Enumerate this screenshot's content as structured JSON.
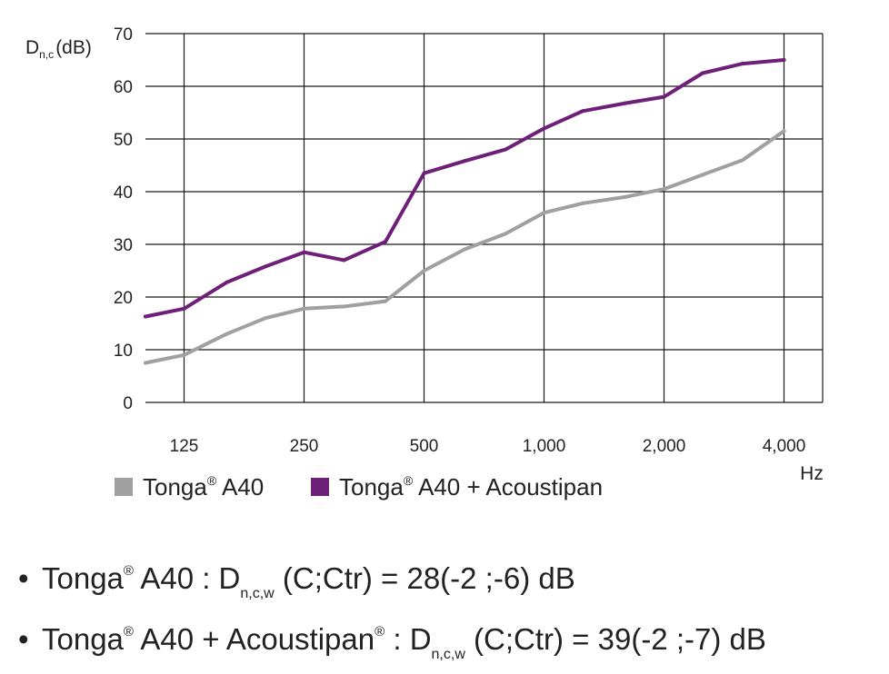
{
  "chart_data": {
    "type": "line",
    "ylabel": {
      "main": "D",
      "sub": "n,c",
      "unit": "(dB)"
    },
    "xlabel": "Hz",
    "ylim": [
      0,
      70
    ],
    "yticks": [
      0,
      10,
      20,
      30,
      40,
      50,
      60,
      70
    ],
    "x_scale": "log",
    "x_range": [
      100,
      5000
    ],
    "xticks": [
      {
        "value": 125,
        "label": "125"
      },
      {
        "value": 250,
        "label": "250"
      },
      {
        "value": 500,
        "label": "500"
      },
      {
        "value": 1000,
        "label": "1,000"
      },
      {
        "value": 2000,
        "label": "2,000"
      },
      {
        "value": 4000,
        "label": "4,000"
      }
    ],
    "grid": true,
    "x": [
      100,
      125,
      160,
      200,
      250,
      315,
      400,
      500,
      630,
      800,
      1000,
      1250,
      1600,
      2000,
      2500,
      3150,
      4000,
      5000
    ],
    "series": [
      {
        "name_main": "Tonga",
        "name_sup": "®",
        "name_rest": " A40",
        "color": "#a0a0a0",
        "values": [
          7.5,
          9,
          13,
          16,
          17.8,
          18.2,
          19.2,
          25,
          29,
          32,
          36,
          37.8,
          39,
          40.5,
          43.2,
          46,
          51.5,
          null
        ]
      },
      {
        "name_main": "Tonga",
        "name_sup": "®",
        "name_rest": " A40 + Acoustipan",
        "color": "#6e1f78",
        "values": [
          16.3,
          17.8,
          22.8,
          25.8,
          28.5,
          27,
          30.5,
          43.5,
          45.8,
          48,
          52,
          55.3,
          56.8,
          58,
          62.5,
          64.3,
          65,
          null
        ]
      }
    ],
    "legend_position": "bottom"
  },
  "notes": [
    {
      "bullet": "•",
      "name": "Tonga",
      "sup1": "®",
      "rest": " A40 : D",
      "sub": "n,c,w",
      "tail": " (C;Ctr) = 28(-2 ;-6) dB"
    },
    {
      "bullet": "•",
      "name": "Tonga",
      "sup1": "®",
      "rest": " A40 + Acoustipan",
      "sup2": "®",
      "rest2": " : D",
      "sub": "n,c,w",
      "tail": " (C;Ctr) = 39(-2 ;-7) dB"
    }
  ]
}
